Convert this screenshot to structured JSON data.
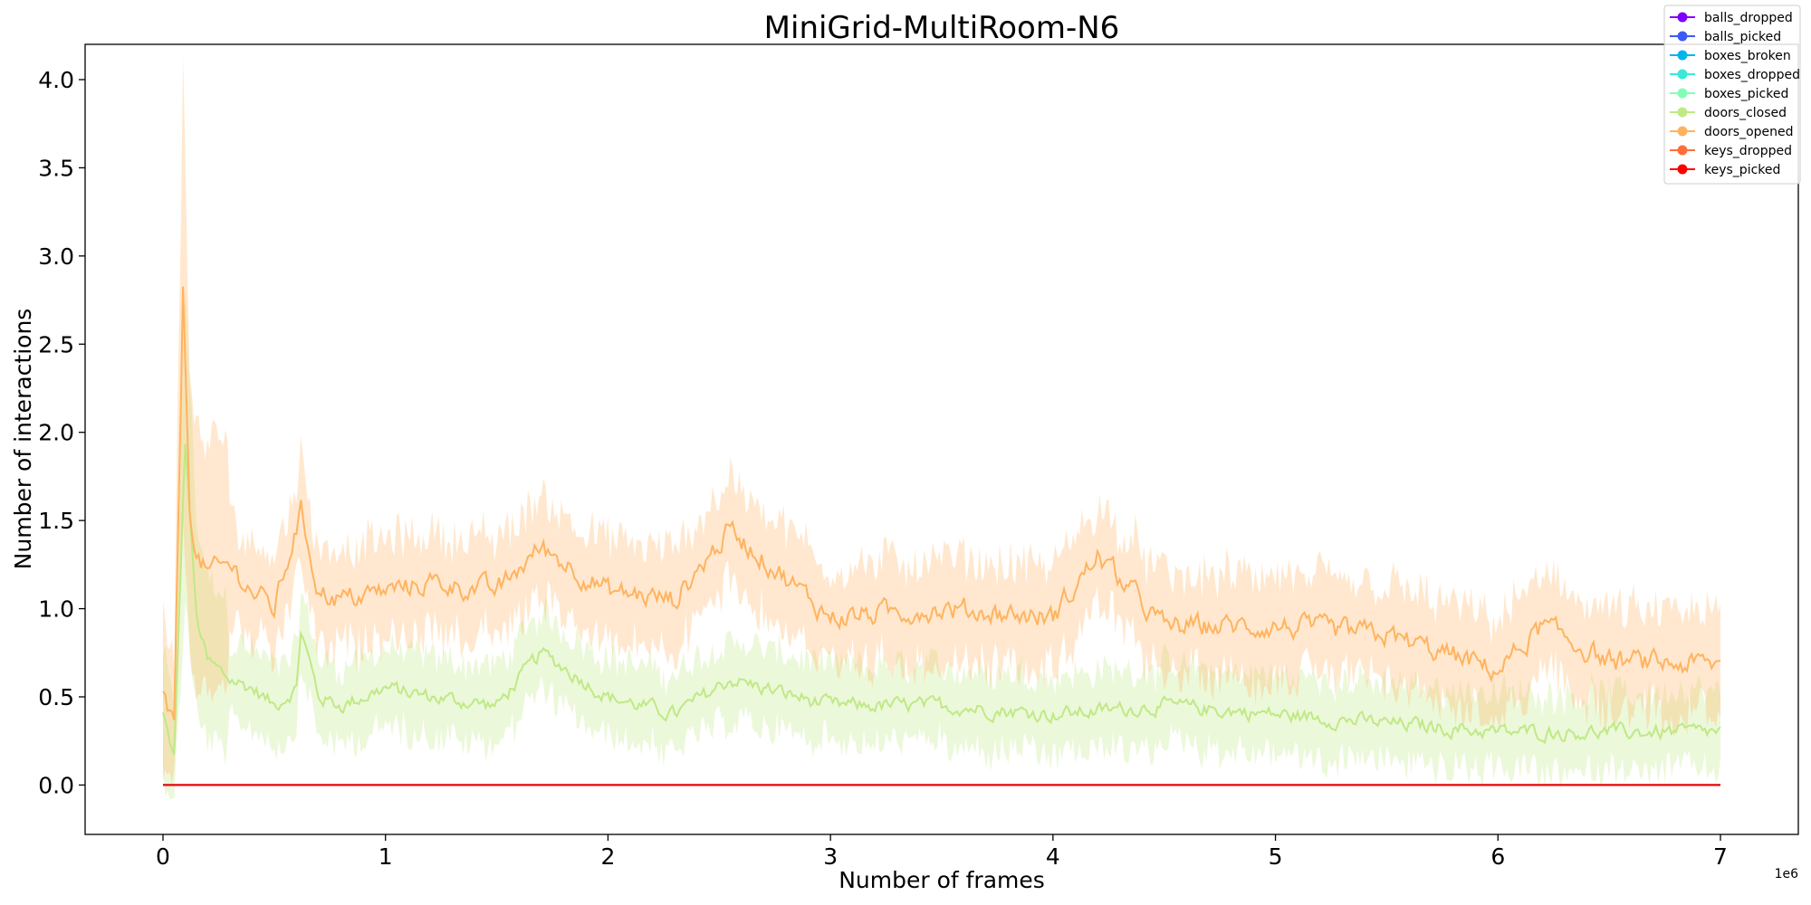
{
  "chart_data": {
    "type": "line",
    "title": "MiniGrid-MultiRoom-N6",
    "xlabel": "Number of frames",
    "ylabel": "Number of interactions",
    "x_offset_label": "1e6",
    "xlim": [
      -0.35,
      7.35
    ],
    "ylim": [
      -0.28,
      4.2
    ],
    "x_ticks": [
      0,
      1,
      2,
      3,
      4,
      5,
      6,
      7
    ],
    "x_tick_labels": [
      "0",
      "1",
      "2",
      "3",
      "4",
      "5",
      "6",
      "7"
    ],
    "y_ticks": [
      0.0,
      0.5,
      1.0,
      1.5,
      2.0,
      2.5,
      3.0,
      3.5,
      4.0
    ],
    "y_tick_labels": [
      "0.0",
      "0.5",
      "1.0",
      "1.5",
      "2.0",
      "2.5",
      "3.0",
      "3.5",
      "4.0"
    ],
    "grid": false,
    "legend_position": "top-right",
    "series": [
      {
        "name": "balls_dropped",
        "color": "#8000ff",
        "x": [
          0,
          7
        ],
        "y": [
          0,
          0
        ]
      },
      {
        "name": "balls_picked",
        "color": "#3e5af4",
        "x": [
          0,
          7
        ],
        "y": [
          0,
          0
        ]
      },
      {
        "name": "boxes_broken",
        "color": "#00b5eb",
        "x": [
          0,
          7
        ],
        "y": [
          0,
          0
        ]
      },
      {
        "name": "boxes_dropped",
        "color": "#3ce8d6",
        "x": [
          0,
          7
        ],
        "y": [
          0,
          0
        ]
      },
      {
        "name": "boxes_picked",
        "color": "#80ffb4",
        "x": [
          0,
          7
        ],
        "y": [
          0,
          0
        ]
      },
      {
        "name": "doors_closed",
        "color": "#bfe986",
        "x": [
          0,
          0.05,
          0.1,
          0.15,
          0.2,
          0.3,
          0.4,
          0.5,
          0.6,
          0.62,
          0.7,
          0.8,
          1.0,
          1.2,
          1.5,
          1.7,
          2.0,
          2.3,
          2.55,
          3.0,
          3.5,
          4.0,
          4.5,
          5.0,
          5.5,
          6.0,
          6.5,
          7.0
        ],
        "y": [
          0.4,
          0.15,
          1.95,
          0.95,
          0.7,
          0.6,
          0.55,
          0.45,
          0.55,
          0.88,
          0.5,
          0.45,
          0.55,
          0.5,
          0.45,
          0.75,
          0.5,
          0.4,
          0.6,
          0.45,
          0.45,
          0.4,
          0.45,
          0.4,
          0.35,
          0.3,
          0.3,
          0.3
        ]
      },
      {
        "name": "doors_opened",
        "color": "#ffb360",
        "x": [
          0,
          0.05,
          0.09,
          0.12,
          0.15,
          0.2,
          0.3,
          0.4,
          0.5,
          0.62,
          0.7,
          0.8,
          1.0,
          1.2,
          1.5,
          1.7,
          2.0,
          2.3,
          2.55,
          3.0,
          3.5,
          4.0,
          4.2,
          4.5,
          5.0,
          5.5,
          6.0,
          6.2,
          6.5,
          7.0
        ],
        "y": [
          0.5,
          0.3,
          2.8,
          1.6,
          1.3,
          1.2,
          1.25,
          1.1,
          1.0,
          1.55,
          1.1,
          1.05,
          1.1,
          1.15,
          1.1,
          1.35,
          1.1,
          1.05,
          1.45,
          0.95,
          1.0,
          0.95,
          1.3,
          0.9,
          0.9,
          0.85,
          0.65,
          0.9,
          0.7,
          0.68
        ]
      },
      {
        "name": "keys_dropped",
        "color": "#ff6e3a",
        "x": [
          0,
          7
        ],
        "y": [
          0,
          0
        ]
      },
      {
        "name": "keys_picked",
        "color": "#ff0000",
        "x": [
          0,
          7
        ],
        "y": [
          0,
          0
        ]
      }
    ]
  }
}
